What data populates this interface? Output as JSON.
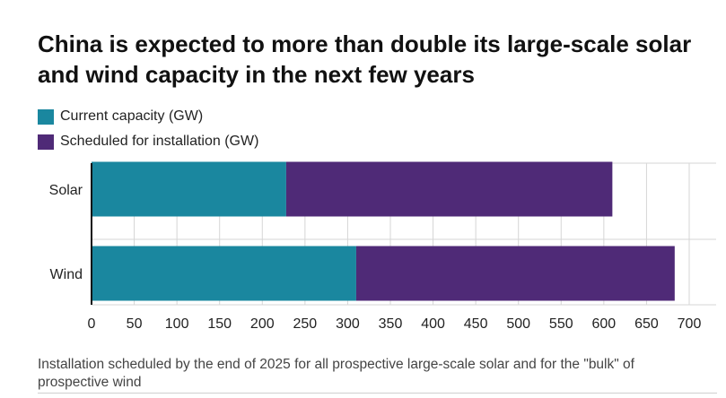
{
  "title": "China is expected to more than double its large-scale solar and wind capacity in the next few years",
  "footnote": "Installation scheduled by the end of 2025 for all prospective large-scale solar and for the \"bulk\" of prospective wind",
  "chart_data": {
    "type": "bar",
    "orientation": "horizontal",
    "stacked": true,
    "categories": [
      "Solar",
      "Wind"
    ],
    "series": [
      {
        "name": "Current capacity (GW)",
        "values": [
          228,
          310
        ],
        "color": "#1a879f"
      },
      {
        "name": "Scheduled for installation (GW)",
        "values": [
          382,
          373
        ],
        "color": "#4f2a77"
      }
    ],
    "xlim": [
      0,
      700
    ],
    "xticks": [
      0,
      50,
      100,
      150,
      200,
      250,
      300,
      350,
      400,
      450,
      500,
      550,
      600,
      650,
      700
    ],
    "grid": true,
    "legend_position": "top-left"
  }
}
